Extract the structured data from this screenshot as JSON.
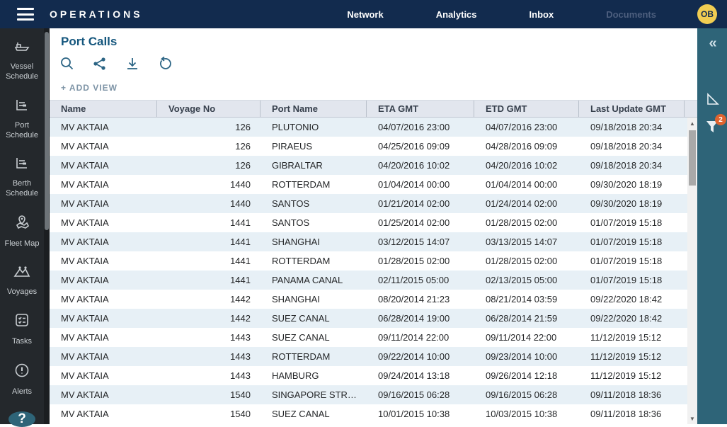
{
  "topbar": {
    "brand": "OPERATIONS",
    "nav": [
      {
        "label": "Network",
        "muted": false
      },
      {
        "label": "Analytics",
        "muted": false
      },
      {
        "label": "Inbox",
        "muted": false
      },
      {
        "label": "Documents",
        "muted": true
      }
    ],
    "avatar_initials": "OB"
  },
  "sidebar": {
    "items": [
      {
        "icon": "vessel-schedule-icon",
        "label": "Vessel Schedule"
      },
      {
        "icon": "port-schedule-icon",
        "label": "Port Schedule"
      },
      {
        "icon": "berth-schedule-icon",
        "label": "Berth Schedule"
      },
      {
        "icon": "fleet-map-icon",
        "label": "Fleet Map"
      },
      {
        "icon": "voyages-icon",
        "label": "Voyages"
      },
      {
        "icon": "tasks-icon",
        "label": "Tasks"
      },
      {
        "icon": "alerts-icon",
        "label": "Alerts"
      }
    ],
    "help_label": "?"
  },
  "main": {
    "title": "Port Calls",
    "toolbar_icons": [
      "search-icon",
      "share-icon",
      "download-icon",
      "reset-icon"
    ],
    "add_view_label": "+ ADD VIEW"
  },
  "right_panel": {
    "icons": [
      "collapse-icon",
      "pointer-tool-icon",
      "filter-icon"
    ],
    "collapse_glyph": "«",
    "filter_badge_count": "2"
  },
  "table": {
    "columns": [
      "Name",
      "Voyage No",
      "Port Name",
      "ETA GMT",
      "ETD GMT",
      "Last Update GMT"
    ],
    "rows": [
      [
        "MV AKTAIA",
        "126",
        "PLUTONIO",
        "04/07/2016 23:00",
        "04/07/2016 23:00",
        "09/18/2018 20:34"
      ],
      [
        "MV AKTAIA",
        "126",
        "PIRAEUS",
        "04/25/2016 09:09",
        "04/28/2016 09:09",
        "09/18/2018 20:34"
      ],
      [
        "MV AKTAIA",
        "126",
        "GIBRALTAR",
        "04/20/2016 10:02",
        "04/20/2016 10:02",
        "09/18/2018 20:34"
      ],
      [
        "MV AKTAIA",
        "1440",
        "ROTTERDAM",
        "01/04/2014 00:00",
        "01/04/2014 00:00",
        "09/30/2020 18:19"
      ],
      [
        "MV AKTAIA",
        "1440",
        "SANTOS",
        "01/21/2014 02:00",
        "01/24/2014 02:00",
        "09/30/2020 18:19"
      ],
      [
        "MV AKTAIA",
        "1441",
        "SANTOS",
        "01/25/2014 02:00",
        "01/28/2015 02:00",
        "01/07/2019 15:18"
      ],
      [
        "MV AKTAIA",
        "1441",
        "SHANGHAI",
        "03/12/2015 14:07",
        "03/13/2015 14:07",
        "01/07/2019 15:18"
      ],
      [
        "MV AKTAIA",
        "1441",
        "ROTTERDAM",
        "01/28/2015 02:00",
        "01/28/2015 02:00",
        "01/07/2019 15:18"
      ],
      [
        "MV AKTAIA",
        "1441",
        "PANAMA CANAL",
        "02/11/2015 05:00",
        "02/13/2015 05:00",
        "01/07/2019 15:18"
      ],
      [
        "MV AKTAIA",
        "1442",
        "SHANGHAI",
        "08/20/2014 21:23",
        "08/21/2014 03:59",
        "09/22/2020 18:42"
      ],
      [
        "MV AKTAIA",
        "1442",
        "SUEZ CANAL",
        "06/28/2014 19:00",
        "06/28/2014 21:59",
        "09/22/2020 18:42"
      ],
      [
        "MV AKTAIA",
        "1443",
        "SUEZ CANAL",
        "09/11/2014 22:00",
        "09/11/2014 22:00",
        "11/12/2019 15:12"
      ],
      [
        "MV AKTAIA",
        "1443",
        "ROTTERDAM",
        "09/22/2014 10:00",
        "09/23/2014 10:00",
        "11/12/2019 15:12"
      ],
      [
        "MV AKTAIA",
        "1443",
        "HAMBURG",
        "09/24/2014 13:18",
        "09/26/2014 12:18",
        "11/12/2019 15:12"
      ],
      [
        "MV AKTAIA",
        "1540",
        "SINGAPORE STR…",
        "09/16/2015 06:28",
        "09/16/2015 06:28",
        "09/11/2018 18:36"
      ],
      [
        "MV AKTAIA",
        "1540",
        "SUEZ CANAL",
        "10/01/2015 10:38",
        "10/03/2015 10:38",
        "09/11/2018 18:36"
      ]
    ]
  },
  "colors": {
    "topbar_bg": "#122b4e",
    "accent_yellow": "#f0cd52",
    "left_sidebar_bg": "#24282c",
    "right_panel_bg": "#2e6478",
    "badge_orange": "#df6430",
    "title_blue": "#14567d",
    "row_alt_bg": "#e7f0f6",
    "header_bg": "#e2e6ee"
  }
}
